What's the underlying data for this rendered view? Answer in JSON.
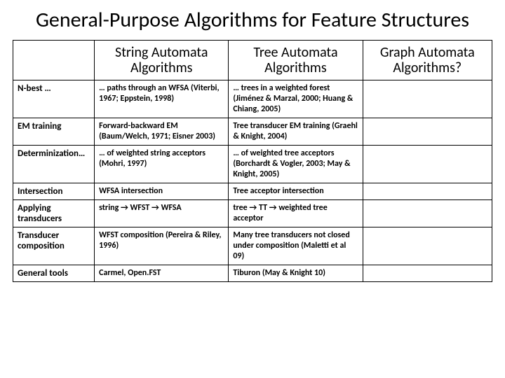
{
  "title": "General-Purpose Algorithms for Feature Structures",
  "columns": {
    "blank": "",
    "c1": "String Automata Algorithms",
    "c2": "Tree Automata Algorithms",
    "c3": "Graph Automata Algorithms?"
  },
  "rows": {
    "r0": {
      "label": "N-best …",
      "c1": "… paths through an WFSA (Viterbi, 1967; Eppstein, 1998)",
      "c2": "… trees in a weighted forest (Jiménez & Marzal, 2000; Huang & Chiang, 2005)",
      "c3": ""
    },
    "r1": {
      "label": "EM training",
      "c1": "Forward-backward EM (Baum/Welch, 1971; Eisner 2003)",
      "c2": "Tree transducer EM training (Graehl & Knight, 2004)",
      "c3": ""
    },
    "r2": {
      "label": "Determinization…",
      "c1": "… of weighted string acceptors (Mohri, 1997)",
      "c2": "… of weighted tree acceptors (Borchardt & Vogler, 2003; May & Knight, 2005)",
      "c3": ""
    },
    "r3": {
      "label": "Intersection",
      "c1": "WFSA intersection",
      "c2": "Tree acceptor intersection",
      "c3": ""
    },
    "r4": {
      "label": "Applying transducers",
      "c1": "string → WFST → WFSA",
      "c2": "tree → TT → weighted tree acceptor",
      "c3": ""
    },
    "r5": {
      "label": "Transducer composition",
      "c1": "WFST composition (Pereira & Riley, 1996)",
      "c2": "Many tree transducers not closed under composition (Maletti et al 09)",
      "c3": ""
    },
    "r6": {
      "label": "General tools",
      "c1": "Carmel, Open.FST",
      "c2": "Tiburon (May & Knight 10)",
      "c3": ""
    }
  }
}
